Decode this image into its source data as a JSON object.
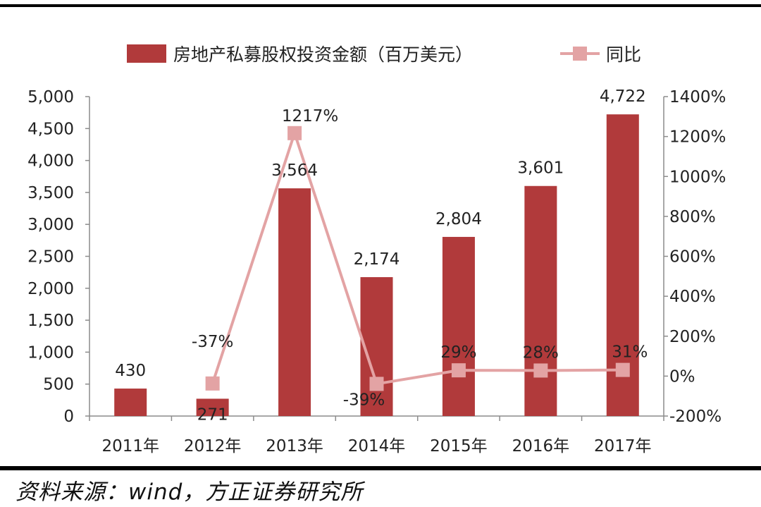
{
  "chart_data": {
    "type": "bar",
    "categories": [
      "2011年",
      "2012年",
      "2013年",
      "2014年",
      "2015年",
      "2016年",
      "2017年"
    ],
    "series": [
      {
        "name": "房地产私募股权投资金额（百万美元）",
        "type": "bar",
        "axis": "left",
        "values": [
          430,
          271,
          3564,
          2174,
          2804,
          3601,
          4722
        ],
        "labels": [
          "430",
          "271",
          "3,564",
          "2,174",
          "2,804",
          "3,601",
          "4,722"
        ],
        "color": "#b13a3b"
      },
      {
        "name": "同比",
        "type": "line",
        "axis": "right",
        "values": [
          null,
          -37,
          1217,
          -39,
          29,
          28,
          31
        ],
        "labels": [
          "",
          "-37%",
          "1217%",
          "-39%",
          "29%",
          "28%",
          "31%"
        ],
        "color": "#e3a3a4"
      }
    ],
    "y_left": {
      "range": [
        0,
        5000
      ],
      "ticks": [
        0,
        500,
        1000,
        1500,
        2000,
        2500,
        3000,
        3500,
        4000,
        4500,
        5000
      ],
      "tick_labels": [
        "0",
        "500",
        "1,000",
        "1,500",
        "2,000",
        "2,500",
        "3,000",
        "3,500",
        "4,000",
        "4,500",
        "5,000"
      ]
    },
    "y_right": {
      "range": [
        -200,
        1400
      ],
      "ticks": [
        -200,
        0,
        200,
        400,
        600,
        800,
        1000,
        1200,
        1400
      ],
      "tick_labels": [
        "-200%",
        "0%",
        "200%",
        "400%",
        "600%",
        "800%",
        "1000%",
        "1200%",
        "1400%"
      ]
    },
    "grid": false,
    "legend": "top"
  },
  "source_text": "资料来源：wind，方正证券研究所"
}
